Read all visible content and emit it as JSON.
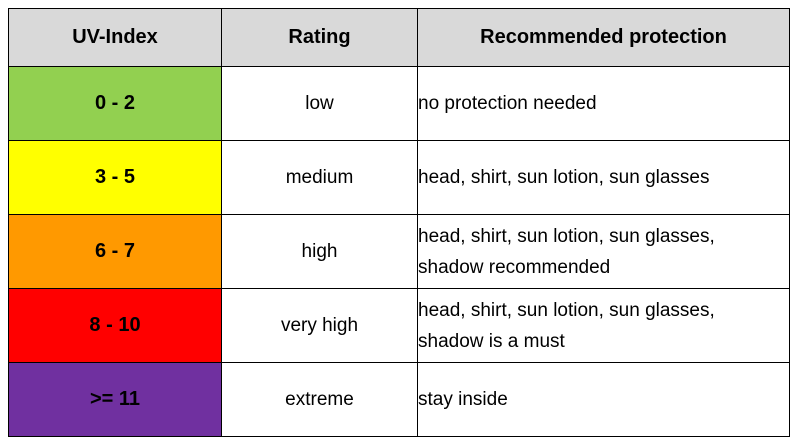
{
  "headers": {
    "uv_index": "UV-Index",
    "rating": "Rating",
    "protection": "Recommended protection"
  },
  "rows": [
    {
      "uv": "0 - 2",
      "rating": "low",
      "protection": [
        "no protection needed"
      ],
      "color": "#92d050"
    },
    {
      "uv": "3 - 5",
      "rating": "medium",
      "protection": [
        "head, shirt, sun lotion, sun glasses"
      ],
      "color": "#ffff00"
    },
    {
      "uv": "6 - 7",
      "rating": "high",
      "protection": [
        "head, shirt, sun lotion, sun glasses,",
        "shadow recommended"
      ],
      "color": "#ff9900"
    },
    {
      "uv": "8 - 10",
      "rating": "very high",
      "protection": [
        "head, shirt, sun lotion, sun glasses,",
        "shadow is a must"
      ],
      "color": "#ff0000"
    },
    {
      "uv": ">= 11",
      "rating": "extreme",
      "protection": [
        "stay inside"
      ],
      "color": "#7030a0"
    }
  ]
}
